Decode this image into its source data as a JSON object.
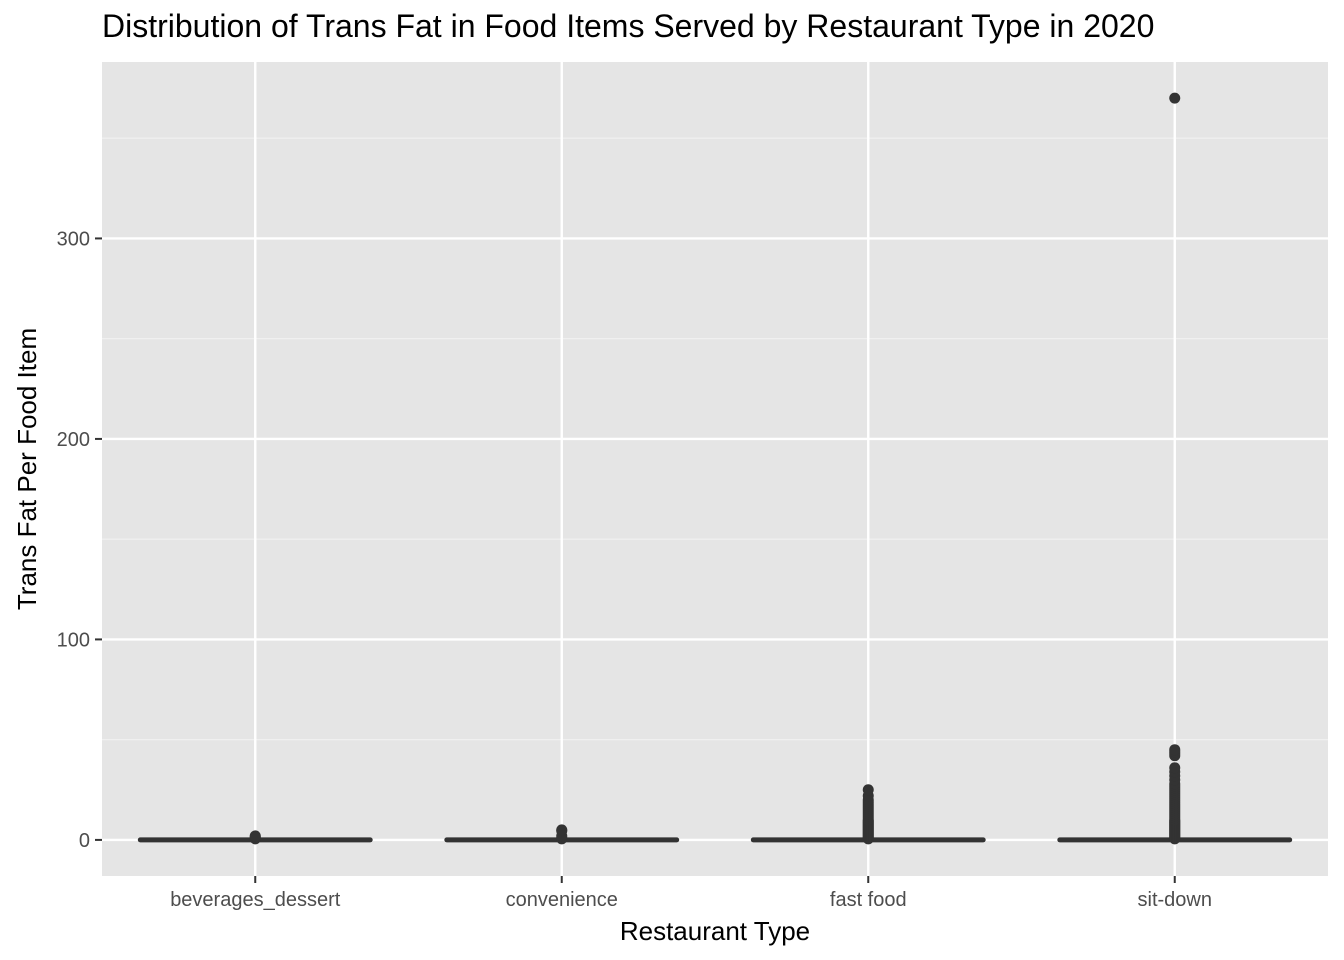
{
  "chart_data": {
    "type": "box",
    "title": "Distribution of Trans Fat in Food Items Served by Restaurant Type in 2020",
    "xlabel": "Restaurant Type",
    "ylabel": "Trans Fat Per Food Item",
    "categories": [
      "beverages_dessert",
      "convenience",
      "fast food",
      "sit-down"
    ],
    "ylim": [
      -18,
      388
    ],
    "y_ticks": [
      0,
      100,
      200,
      300
    ],
    "y_minor_ticks": [
      50,
      150,
      250,
      350
    ],
    "grid": true,
    "legend": "none",
    "boxes": [
      {
        "category": "beverages_dessert",
        "q1": 0,
        "median": 0,
        "q3": 0,
        "whisker_low": 0,
        "whisker_high": 0,
        "outliers": [
          0.5,
          1,
          1.5,
          2
        ]
      },
      {
        "category": "convenience",
        "q1": 0,
        "median": 0,
        "q3": 0,
        "whisker_low": 0,
        "whisker_high": 0,
        "outliers": [
          0.5,
          1,
          2,
          4.5,
          5
        ]
      },
      {
        "category": "fast food",
        "q1": 0,
        "median": 0,
        "q3": 0,
        "whisker_low": 0,
        "whisker_high": 0,
        "outliers": [
          0.5,
          1,
          1.5,
          2,
          2.5,
          3,
          3.5,
          4,
          4.5,
          5,
          5.5,
          6,
          6.5,
          7,
          7.5,
          8,
          8.5,
          9,
          9.5,
          10,
          11,
          12,
          13,
          14,
          15,
          16,
          17,
          18,
          19,
          20,
          22,
          25
        ]
      },
      {
        "category": "sit-down",
        "q1": 0,
        "median": 0,
        "q3": 0,
        "whisker_low": 0,
        "whisker_high": 0,
        "outliers": [
          0.5,
          1,
          1.5,
          2,
          2.5,
          3,
          3.5,
          4,
          4.5,
          5,
          5.5,
          6,
          6.5,
          7,
          7.5,
          8,
          8.5,
          9,
          9.5,
          10,
          11,
          12,
          13,
          14,
          15,
          16,
          17,
          18,
          19,
          20,
          21,
          22,
          23,
          24,
          25,
          26,
          27,
          28,
          30,
          32,
          34,
          36,
          42,
          43,
          44,
          45,
          370
        ]
      }
    ]
  },
  "colors": {
    "panel_background": "#e5e5e5",
    "grid_major": "#ffffff",
    "grid_minor": "#f2f2f2",
    "box": "#333333",
    "outlier": "#333333",
    "tick_text": "#4d4d4d",
    "title_text": "#000000"
  }
}
